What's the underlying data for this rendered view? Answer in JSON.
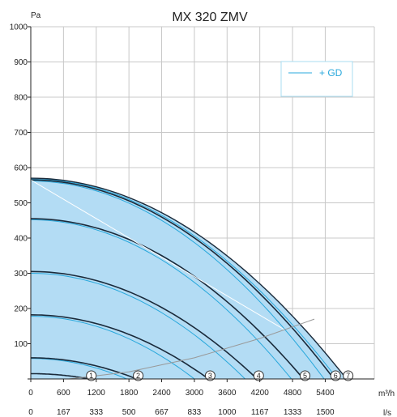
{
  "chart_data": {
    "type": "line",
    "title": "MX 320 ZMV",
    "ylabel": "Pa",
    "x_unit": "m³/h",
    "x2_unit": "l/s",
    "xlim": [
      0,
      6300
    ],
    "ylim": [
      0,
      1000
    ],
    "y_ticks": [
      0,
      100,
      200,
      300,
      400,
      500,
      600,
      700,
      800,
      900,
      1000
    ],
    "y_tick_labels": [
      "100",
      "200",
      "300",
      "400",
      "500",
      "600",
      "700",
      "800",
      "900",
      "1000"
    ],
    "x_ticks": [
      0,
      600,
      1200,
      1800,
      2400,
      3000,
      3600,
      4200,
      4800,
      5400
    ],
    "x_tick_labels": [
      "0",
      "600",
      "1200",
      "1800",
      "2400",
      "3000",
      "3600",
      "4200",
      "4800",
      "5400"
    ],
    "x2_tick_labels": [
      "0",
      "167",
      "333",
      "500",
      "667",
      "833",
      "1000",
      "1167",
      "1333",
      "1500"
    ],
    "grid": true,
    "legend": {
      "position": "top-right",
      "entries": [
        {
          "label": "+ GD",
          "color": "#29a8dc"
        }
      ]
    },
    "colors": {
      "fill": "#b3dcf4",
      "speed_curve": "#1a2a3a",
      "gd_curve": "#29a8dc",
      "system_curve": "#999999",
      "grid": "#c8c8c8"
    },
    "speed_curves": [
      {
        "label": "1",
        "p0": 15,
        "q0": 1080
      },
      {
        "label": "2",
        "p0": 60,
        "q0": 1940
      },
      {
        "label": "3",
        "p0": 182,
        "q0": 3260
      },
      {
        "label": "4",
        "p0": 305,
        "q0": 4150
      },
      {
        "label": "5",
        "p0": 455,
        "q0": 5000
      },
      {
        "label": "6",
        "p0": 565,
        "q0": 5560
      },
      {
        "label": "7",
        "p0": 570,
        "q0": 5790
      }
    ],
    "gd_curves": [
      {
        "p0": 58,
        "q0": 1760
      },
      {
        "p0": 178,
        "q0": 3000
      },
      {
        "p0": 300,
        "q0": 3930
      },
      {
        "p0": 452,
        "q0": 4780
      },
      {
        "p0": 562,
        "q0": 5380
      },
      {
        "p0": 568,
        "q0": 5620
      }
    ],
    "system_curve": {
      "x": [
        700,
        1800,
        3000,
        4200,
        5200
      ],
      "y": [
        0,
        20,
        60,
        115,
        170
      ]
    },
    "diagonal_line": {
      "x": [
        0,
        4650
      ],
      "y": [
        565,
        140
      ]
    }
  }
}
